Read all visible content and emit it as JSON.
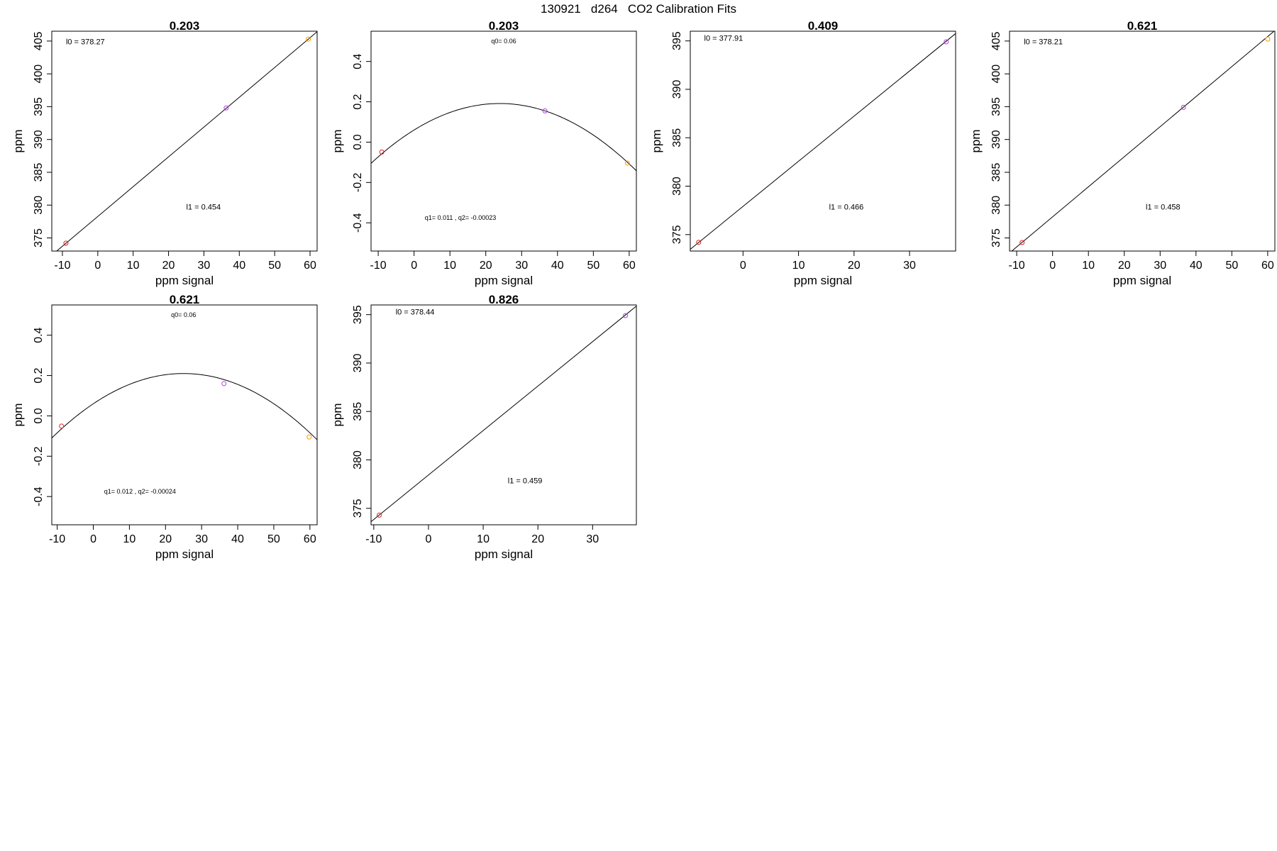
{
  "header": {
    "title": "130921   d264   CO2 Calibration Fits"
  },
  "chart_data": [
    {
      "type": "scatter",
      "fit": "linear",
      "title": "0.203",
      "xlabel": "ppm signal",
      "ylabel": "ppm",
      "xlim": [
        -13,
        62
      ],
      "ylim": [
        373.0,
        406.5
      ],
      "xticks": [
        -10,
        0,
        10,
        20,
        30,
        40,
        50,
        60
      ],
      "yticks": [
        375,
        380,
        385,
        390,
        395,
        400,
        405
      ],
      "line": {
        "intercept": 378.27,
        "slope": 0.454
      },
      "points": [
        {
          "x": -9.0,
          "y": 374.2,
          "color": "#e41a1c"
        },
        {
          "x": 36.3,
          "y": 394.8,
          "color": "#b040e0"
        },
        {
          "x": 59.5,
          "y": 405.3,
          "color": "#ff9a00"
        }
      ],
      "annotations": [
        {
          "id": "intercept",
          "text": "l0 =  378.27",
          "x": -9,
          "y": 404.5
        },
        {
          "id": "slope",
          "text": "l1 =  0.454",
          "x": 25,
          "y": 379.3
        }
      ],
      "grid": false
    },
    {
      "type": "scatter",
      "fit": "quadratic",
      "title": "0.203",
      "xlabel": "ppm signal",
      "ylabel": "ppm",
      "xlim": [
        -12,
        62
      ],
      "ylim": [
        -0.54,
        0.55
      ],
      "xticks": [
        -10,
        0,
        10,
        20,
        30,
        40,
        50,
        60
      ],
      "yticks": [
        -0.4,
        -0.2,
        0.0,
        0.2,
        0.4
      ],
      "curve": {
        "q0": 0.06,
        "q1": 0.011,
        "q2": -0.00023
      },
      "points": [
        {
          "x": -9.0,
          "y": -0.049,
          "color": "#e41a1c"
        },
        {
          "x": 36.5,
          "y": 0.155,
          "color": "#b040e0"
        },
        {
          "x": 59.5,
          "y": -0.104,
          "color": "#ff9a00"
        }
      ],
      "annotations": [
        {
          "id": "q0",
          "text": "q0= 0.06",
          "x": 25,
          "y": 0.49
        },
        {
          "id": "q1q2",
          "text": "q1= 0.011 , q2= -0.00023",
          "x": 3,
          "y": -0.385
        }
      ],
      "grid": false
    },
    {
      "type": "scatter",
      "fit": "linear",
      "title": "0.409",
      "xlabel": "ppm signal",
      "ylabel": "ppm",
      "xlim": [
        -9.5,
        38.3
      ],
      "ylim": [
        373.3,
        396.0
      ],
      "xticks": [
        0,
        10,
        20,
        30
      ],
      "yticks": [
        375,
        380,
        385,
        390,
        395
      ],
      "line": {
        "intercept": 377.91,
        "slope": 0.466
      },
      "points": [
        {
          "x": -8.0,
          "y": 374.2,
          "color": "#e41a1c"
        },
        {
          "x": 36.6,
          "y": 394.9,
          "color": "#b040e0"
        }
      ],
      "annotations": [
        {
          "id": "intercept",
          "text": "l0 =  377.91",
          "x": -7,
          "y": 395.0
        },
        {
          "id": "slope",
          "text": "l1 =  0.466",
          "x": 15.5,
          "y": 377.6
        }
      ],
      "grid": false
    },
    {
      "type": "scatter",
      "fit": "linear",
      "title": "0.621",
      "xlabel": "ppm signal",
      "ylabel": "ppm",
      "xlim": [
        -12,
        62
      ],
      "ylim": [
        373.0,
        406.5
      ],
      "xticks": [
        -10,
        0,
        10,
        20,
        30,
        40,
        50,
        60
      ],
      "yticks": [
        375,
        380,
        385,
        390,
        395,
        400,
        405
      ],
      "line": {
        "intercept": 378.21,
        "slope": 0.458
      },
      "points": [
        {
          "x": -8.5,
          "y": 374.3,
          "color": "#e41a1c"
        },
        {
          "x": 36.5,
          "y": 394.9,
          "color": "#b040e0"
        },
        {
          "x": 60.0,
          "y": 405.3,
          "color": "#ff9a00"
        }
      ],
      "annotations": [
        {
          "id": "intercept",
          "text": "l0 =  378.21",
          "x": -8,
          "y": 404.5
        },
        {
          "id": "slope",
          "text": "l1 =  0.458",
          "x": 26,
          "y": 379.3
        }
      ],
      "grid": false
    },
    {
      "type": "scatter",
      "fit": "quadratic",
      "title": "0.621",
      "xlabel": "ppm signal",
      "ylabel": "ppm",
      "xlim": [
        -11.5,
        62
      ],
      "ylim": [
        -0.54,
        0.55
      ],
      "xticks": [
        -10,
        0,
        10,
        20,
        30,
        40,
        50,
        60
      ],
      "yticks": [
        -0.4,
        -0.2,
        0.0,
        0.2,
        0.4
      ],
      "curve": {
        "q0": 0.06,
        "q1": 0.012,
        "q2": -0.00024
      },
      "points": [
        {
          "x": -8.8,
          "y": -0.051,
          "color": "#e41a1c"
        },
        {
          "x": 36.2,
          "y": 0.16,
          "color": "#b040e0"
        },
        {
          "x": 59.8,
          "y": -0.105,
          "color": "#ff9a00"
        }
      ],
      "annotations": [
        {
          "id": "q0",
          "text": "q0= 0.06",
          "x": 25,
          "y": 0.49
        },
        {
          "id": "q1q2",
          "text": "q1= 0.012 , q2= -0.00024",
          "x": 3,
          "y": -0.385
        }
      ],
      "grid": false
    },
    {
      "type": "scatter",
      "fit": "linear",
      "title": "0.826",
      "xlabel": "ppm signal",
      "ylabel": "ppm",
      "xlim": [
        -10.5,
        38.0
      ],
      "ylim": [
        373.3,
        396.0
      ],
      "xticks": [
        -10,
        0,
        10,
        20,
        30
      ],
      "yticks": [
        375,
        380,
        385,
        390,
        395
      ],
      "line": {
        "intercept": 378.44,
        "slope": 0.459
      },
      "points": [
        {
          "x": -9.0,
          "y": 374.3,
          "color": "#e41a1c"
        },
        {
          "x": 36.0,
          "y": 394.9,
          "color": "#b040e0"
        }
      ],
      "annotations": [
        {
          "id": "intercept",
          "text": "l0 =  378.44",
          "x": -6,
          "y": 395.0
        },
        {
          "id": "slope",
          "text": "l1 =  0.459",
          "x": 14.5,
          "y": 377.6
        }
      ],
      "grid": false
    }
  ]
}
